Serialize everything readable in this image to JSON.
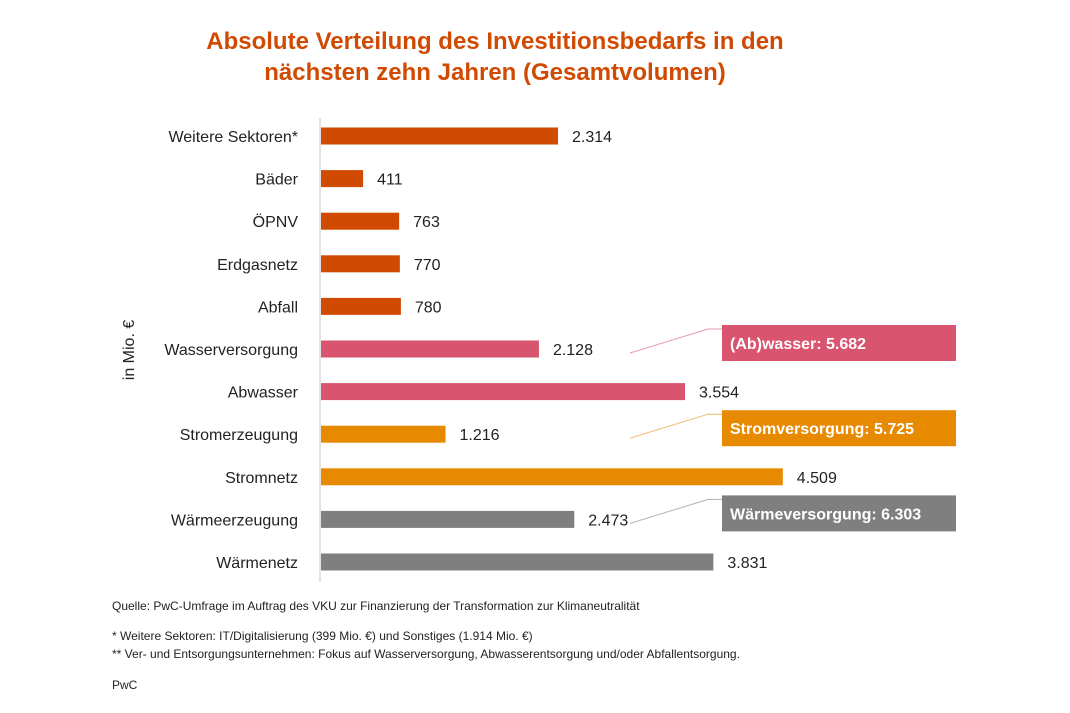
{
  "chart_data": {
    "type": "bar",
    "orientation": "horizontal",
    "title": "Absolute Verteilung des Investitionsbedarfs in den nächsten zehn Jahren (Gesamtvolumen)",
    "title_lines": [
      "Absolute Verteilung des Investitionsbedarfs in den",
      "nächsten zehn Jahren (Gesamtvolumen)"
    ],
    "ylabel": "in Mio. €",
    "xlabel": "",
    "xlim": [
      0,
      6000
    ],
    "grid": false,
    "categories": [
      "Weitere Sektoren*",
      "Bäder",
      "ÖPNV",
      "Erdgasnetz",
      "Abfall",
      "Wasserversorgung",
      "Abwasser",
      "Stromerzeugung",
      "Stromnetz",
      "Wärmeerzeugung",
      "Wärmenetz"
    ],
    "values": [
      2314,
      411,
      763,
      770,
      780,
      2128,
      3554,
      1216,
      4509,
      2473,
      3831
    ],
    "value_labels": [
      "2.314",
      "411",
      "763",
      "770",
      "780",
      "2.128",
      "3.554",
      "1.216",
      "4.509",
      "2.473",
      "3.831"
    ],
    "groups": [
      "other",
      "other",
      "other",
      "other",
      "other",
      "water",
      "water",
      "power",
      "power",
      "heat",
      "heat"
    ],
    "colors": {
      "other": "#d04a02",
      "water": "#d9546e",
      "power": "#e88a00",
      "heat": "#7f7f7f"
    },
    "callouts": [
      {
        "group": "water",
        "label": "(Ab)wasser: 5.682",
        "value": 5682,
        "anchor_index": 5
      },
      {
        "group": "power",
        "label": "Stromversorgung: 5.725",
        "value": 5725,
        "anchor_index": 7
      },
      {
        "group": "heat",
        "label": "Wärmeversorgung: 6.303",
        "value": 6303,
        "anchor_index": 9
      }
    ]
  },
  "footer": {
    "source": "Quelle: PwC-Umfrage im Auftrag des VKU zur Finanzierung der Transformation zur Klimaneutralität",
    "note1": "* Weitere Sektoren: IT/Digitalisierung (399 Mio. €) und Sonstiges (1.914 Mio. €)",
    "note2": "** Ver- und Entsorgungsunternehmen: Fokus auf Wasserversorgung, Abwasserentsorgung und/oder Abfallentsorgung.",
    "brand": "PwC"
  }
}
